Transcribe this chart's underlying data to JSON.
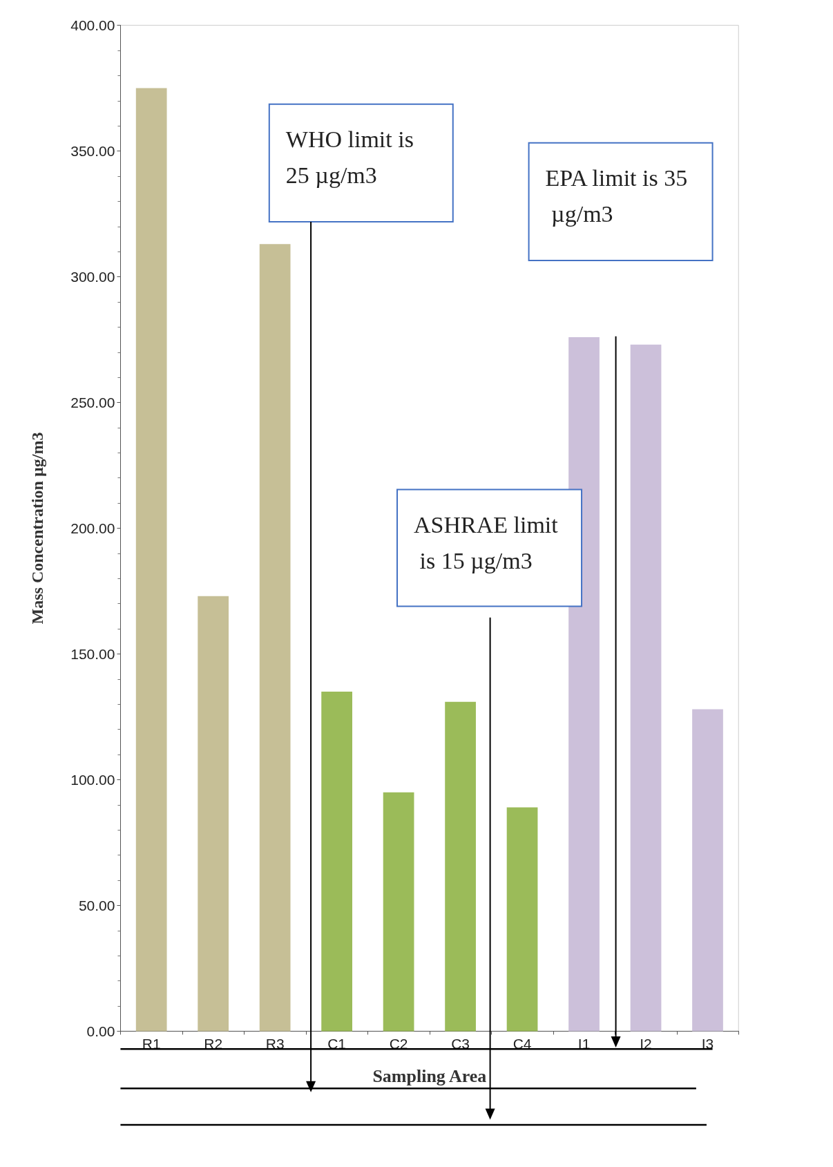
{
  "chart_data": {
    "type": "bar",
    "xlabel": "Sampling Area",
    "ylabel": "Mass Concentration µg/m3",
    "categories": [
      "R1",
      "R2",
      "R3",
      "C1",
      "C2",
      "C3",
      "C4",
      "I1",
      "I2",
      "I3"
    ],
    "values": [
      375,
      173,
      313,
      135,
      95,
      131,
      89,
      276,
      273,
      128
    ],
    "colors": [
      "#c6bf96",
      "#c6bf96",
      "#c6bf96",
      "#9bbb59",
      "#9bbb59",
      "#9bbb59",
      "#9bbb59",
      "#ccc0da",
      "#ccc0da",
      "#ccc0da"
    ],
    "ylim": [
      0,
      400
    ],
    "yticks": [
      {
        "value": 0,
        "label": "0.00"
      },
      {
        "value": 50,
        "label": "50.00"
      },
      {
        "value": 100,
        "label": "100.00"
      },
      {
        "value": 150,
        "label": "150.00"
      },
      {
        "value": 200,
        "label": "200.00"
      },
      {
        "value": 250,
        "label": "250.00"
      },
      {
        "value": 300,
        "label": "300.00"
      },
      {
        "value": 350,
        "label": "350.00"
      },
      {
        "value": 400,
        "label": "400.00"
      }
    ],
    "annotations": [
      "WHO limit is 25 µg/m3",
      "EPA limit is 35 µg/m3",
      "ASHRAE limit is 15 µg/m3"
    ],
    "grid": false
  }
}
